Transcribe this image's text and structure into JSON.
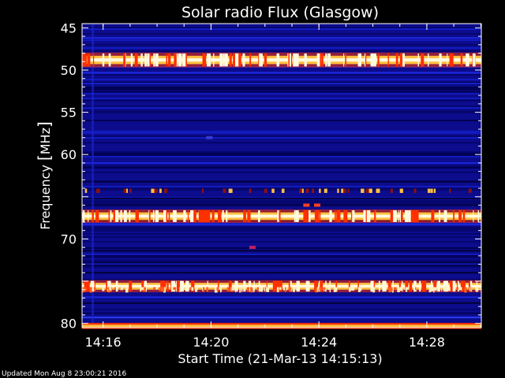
{
  "chart_data": {
    "type": "heatmap",
    "title": "Solar radio Flux (Glasgow)",
    "xlabel": "Start Time (21-Mar-13 14:15:13)",
    "ylabel_text": "Frequency ",
    "ylabel_unit": "MHz",
    "x_ticks": [
      "14:16",
      "14:20",
      "14:24",
      "14:28"
    ],
    "x_tick_minutes": [
      0.78,
      4.78,
      8.78,
      12.78
    ],
    "x_range_minutes": [
      0,
      14.8
    ],
    "y_ticks": [
      45,
      50,
      55,
      60,
      65,
      70,
      75,
      80
    ],
    "y_tick_labels": [
      "45",
      "50",
      "55",
      "60",
      "",
      "70",
      "",
      "80"
    ],
    "y_range": [
      44.5,
      80.5
    ],
    "y_inverted": true,
    "colormap": [
      "#000020",
      "#0a0aa0",
      "#1a22d8",
      "#8a1010",
      "#ff3000",
      "#ffc040",
      "#fffbe0"
    ],
    "background_color": "#0c0c8c",
    "emission_bands": [
      {
        "freq": 48.8,
        "width": 0.55,
        "intensity": "very-high"
      },
      {
        "freq": 67.3,
        "width": 0.5,
        "intensity": "very-high"
      },
      {
        "freq": 75.6,
        "width": 0.45,
        "intensity": "very-high"
      },
      {
        "freq": 80.3,
        "width": 0.35,
        "intensity": "high"
      },
      {
        "freq": 64.3,
        "width": 0.25,
        "intensity": "medium"
      }
    ]
  },
  "footer": {
    "updated": "Updated Mon Aug  8 23:00:21 2016"
  }
}
